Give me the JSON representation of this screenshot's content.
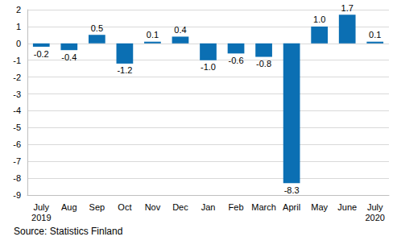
{
  "chart_data": {
    "type": "bar",
    "source": "Source: Statistics Finland",
    "categories": [
      "July\n2019",
      "Aug",
      "Sep",
      "Oct",
      "Nov",
      "Dec",
      "Jan",
      "Feb",
      "March",
      "April",
      "May",
      "June",
      "July\n2020"
    ],
    "values": [
      -0.2,
      -0.4,
      0.5,
      -1.2,
      0.1,
      0.4,
      -1.0,
      -0.6,
      -0.8,
      -8.3,
      1.0,
      1.7,
      0.1
    ],
    "value_labels": [
      "-0.2",
      "-0.4",
      "0.5",
      "-1.2",
      "0.1",
      "0.4",
      "-1.0",
      "-0.6",
      "-0.8",
      "-8.3",
      "1.0",
      "1.7",
      "0.1"
    ],
    "color": "#0b6fb3",
    "ylim": [
      -9,
      2
    ],
    "yticks": [
      -9,
      -8,
      -7,
      -6,
      -5,
      -4,
      -3,
      -2,
      -1,
      0,
      1,
      2
    ],
    "grid": true,
    "data_labels": true
  }
}
